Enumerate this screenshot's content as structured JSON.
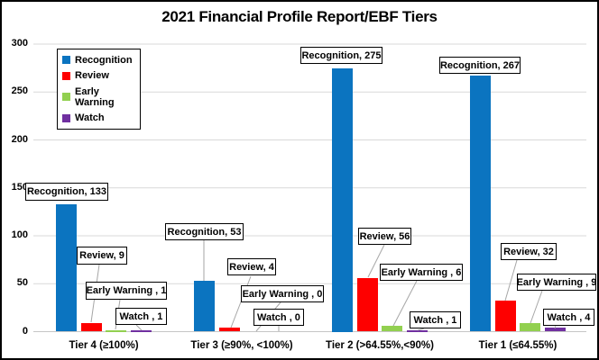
{
  "title": "2021 Financial Profile Report/EBF Tiers",
  "chart_data": {
    "type": "bar",
    "title": "2021 Financial Profile Report/EBF Tiers",
    "categories": [
      "Tier 4 (≥100%)",
      "Tier 3 (≥90%, <100%)",
      "Tier 2 (>64.55%,<90%)",
      "Tier 1 (≤64.55%)"
    ],
    "series": [
      {
        "name": "Recognition",
        "color": "#0b74c0",
        "values": [
          133,
          53,
          275,
          267
        ]
      },
      {
        "name": "Review",
        "color": "#fe0000",
        "values": [
          9,
          4,
          56,
          32
        ]
      },
      {
        "name": "Early Warning",
        "color": "#92d050",
        "values": [
          1,
          0,
          6,
          9
        ]
      },
      {
        "name": "Watch",
        "color": "#7030a0",
        "values": [
          1,
          0,
          1,
          4
        ]
      }
    ],
    "data_labels": [
      [
        "Recognition, 133",
        "Review, 9",
        "Early Warning , 1",
        "Watch , 1"
      ],
      [
        "Recognition, 53",
        "Review, 4",
        "Early Warning , 0",
        "Watch , 0"
      ],
      [
        "Recognition, 275",
        "Review, 56",
        "Early Warning , 6",
        "Watch , 1"
      ],
      [
        "Recognition, 267",
        "Review, 32",
        "Early Warning , 9",
        "Watch , 4"
      ]
    ],
    "legend": [
      "Recognition",
      "Review",
      "Early Warning",
      "Watch"
    ],
    "legend_position": "top-left",
    "yticks": [
      0,
      50,
      100,
      150,
      200,
      250,
      300
    ],
    "ylim": [
      0,
      300
    ],
    "xlabel": "",
    "ylabel": "",
    "grid": true
  },
  "colors": {
    "gridline": "#d9d9d9",
    "axis_line": "#c6c6c6",
    "leader_line": "#a6a6a6",
    "callout_border": "#000000",
    "text": "#000000"
  }
}
